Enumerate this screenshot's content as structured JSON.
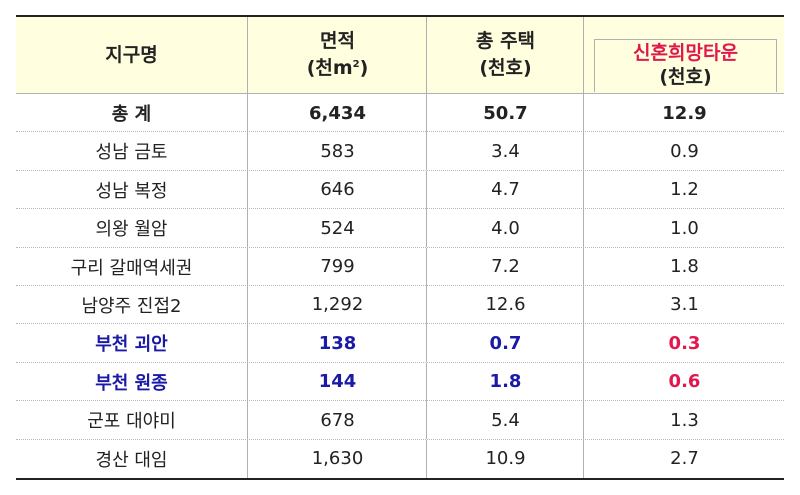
{
  "headers": {
    "district": "지구명",
    "area_line1": "면적",
    "area_line2": "(천m",
    "area_sup": "2",
    "area_close": ")",
    "houses_line1": "총 주택",
    "houses_line2": "(천호)",
    "newlywed_line1": "신혼희망타운",
    "newlywed_line2": "(천호)"
  },
  "rows": [
    {
      "name": "총  계",
      "area": "6,434",
      "houses": "50.7",
      "newlywed": "12.9",
      "style": "total"
    },
    {
      "name": "성남 금토",
      "area": "583",
      "houses": "3.4",
      "newlywed": "0.9",
      "style": "normal"
    },
    {
      "name": "성남 복정",
      "area": "646",
      "houses": "4.7",
      "newlywed": "1.2",
      "style": "normal"
    },
    {
      "name": "의왕 월암",
      "area": "524",
      "houses": "4.0",
      "newlywed": "1.0",
      "style": "normal"
    },
    {
      "name": "구리 갈매역세권",
      "area": "799",
      "houses": "7.2",
      "newlywed": "1.8",
      "style": "normal"
    },
    {
      "name": "남양주 진접2",
      "area": "1,292",
      "houses": "12.6",
      "newlywed": "3.1",
      "style": "normal"
    },
    {
      "name": "부천 괴안",
      "area": "138",
      "houses": "0.7",
      "newlywed": "0.3",
      "style": "blue"
    },
    {
      "name": "부천 원종",
      "area": "144",
      "houses": "1.8",
      "newlywed": "0.6",
      "style": "blue"
    },
    {
      "name": "군포 대야미",
      "area": "678",
      "houses": "5.4",
      "newlywed": "1.3",
      "style": "normal"
    },
    {
      "name": "경산 대임",
      "area": "1,630",
      "houses": "10.9",
      "newlywed": "2.7",
      "style": "normal"
    }
  ],
  "colors": {
    "header_bg": "#ffffe0",
    "highlight_blue": "#1a1aa6",
    "highlight_red": "#e0184e"
  }
}
